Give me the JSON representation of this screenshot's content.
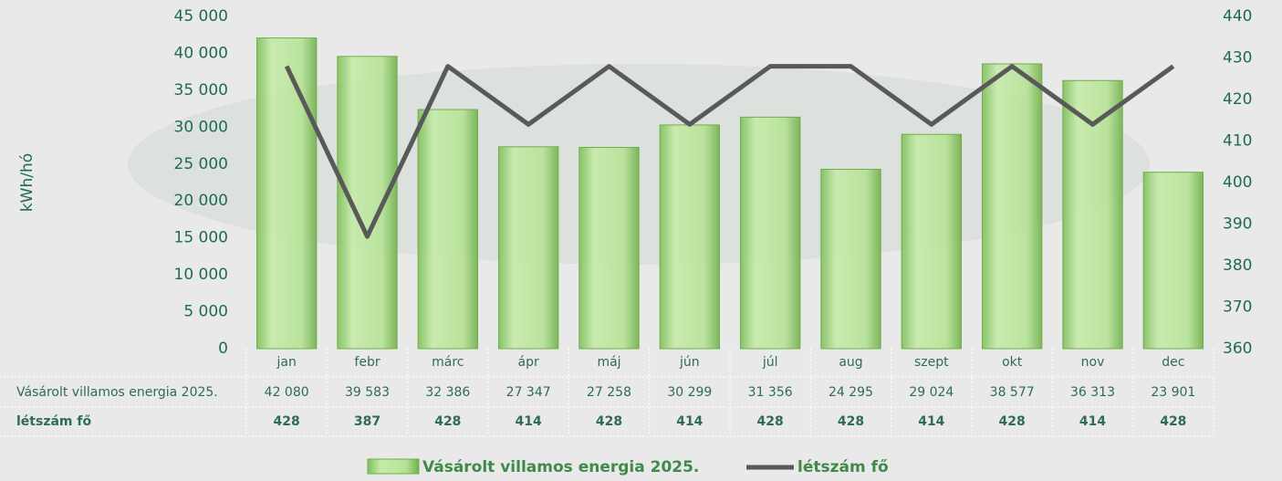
{
  "chart_data": {
    "type": "bar_line",
    "y_label": "kWh/hó",
    "categories": [
      "jan",
      "febr",
      "márc",
      "ápr",
      "máj",
      "jún",
      "júl",
      "aug",
      "szept",
      "okt",
      "nov",
      "dec"
    ],
    "series": [
      {
        "name": "Vásárolt villamos energia 2025.",
        "color": "#9fd67c",
        "type": "bar",
        "values": [
          42080,
          39583,
          32386,
          27347,
          27258,
          30299,
          31356,
          24295,
          29024,
          38577,
          36313,
          23901
        ],
        "value_labels": [
          "42 080",
          "39 583",
          "32 386",
          "27 347",
          "27 258",
          "30 299",
          "31 356",
          "24 295",
          "29 024",
          "38 577",
          "36 313",
          "23 901"
        ]
      },
      {
        "name": "létszám fő",
        "color": "#595959",
        "type": "line",
        "axis": "y2",
        "values": [
          428,
          387,
          428,
          414,
          428,
          414,
          428,
          428,
          414,
          428,
          414,
          428
        ]
      }
    ],
    "ylim": [
      0,
      45000
    ],
    "yticks": [
      0,
      {
        "value": 5000,
        "label": "5 000"
      },
      {
        "value": 10000,
        "label": "10 000"
      },
      {
        "value": 15000,
        "label": "15 000"
      },
      {
        "value": 20000,
        "label": "20 000"
      },
      {
        "value": 25000,
        "label": "25 000"
      },
      {
        "value": 30000,
        "label": "30 000"
      },
      {
        "value": 35000,
        "label": "35 000"
      },
      {
        "value": 40000,
        "label": "40 000"
      },
      {
        "value": 45000,
        "label": "45 000"
      }
    ],
    "y2lim": [
      360,
      440
    ],
    "y2ticks": [
      360,
      370,
      380,
      390,
      400,
      410,
      420,
      430,
      440
    ],
    "legend": "bottom"
  }
}
